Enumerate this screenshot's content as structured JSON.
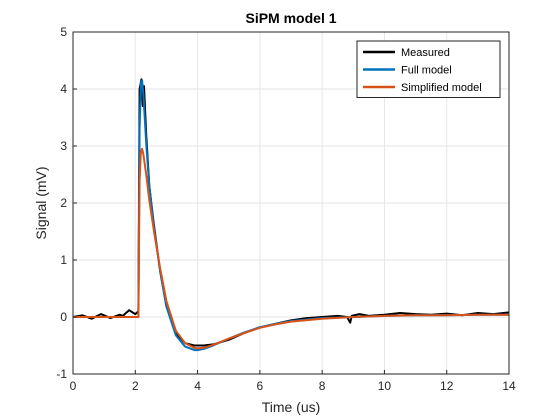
{
  "chart_data": {
    "type": "line",
    "title": "SiPM model 1",
    "xlabel": "Time (us)",
    "ylabel": "Signal (mV)",
    "xlim": [
      0,
      14
    ],
    "ylim": [
      -1,
      5
    ],
    "xticks": [
      0,
      2,
      4,
      6,
      8,
      10,
      12,
      14
    ],
    "yticks": [
      -1,
      0,
      1,
      2,
      3,
      4,
      5
    ],
    "grid": true,
    "legend_position": "top-right",
    "series": [
      {
        "name": "Measured",
        "color": "#000000",
        "x": [
          0,
          0.3,
          0.6,
          0.9,
          1.2,
          1.5,
          1.6,
          1.8,
          2.0,
          2.1,
          2.14,
          2.2,
          2.24,
          2.28,
          2.35,
          2.45,
          2.6,
          2.8,
          3.0,
          3.3,
          3.6,
          3.9,
          4.2,
          4.5,
          5.0,
          5.5,
          6.0,
          6.5,
          7.0,
          7.5,
          8.0,
          8.5,
          8.8,
          8.9,
          8.95,
          9.2,
          9.5,
          10.0,
          10.5,
          11.0,
          11.5,
          12.0,
          12.5,
          13.0,
          13.5,
          14.0
        ],
        "y": [
          0.0,
          0.03,
          -0.03,
          0.05,
          -0.02,
          0.04,
          0.02,
          0.12,
          0.05,
          0.1,
          4.0,
          4.17,
          3.7,
          4.05,
          3.2,
          2.3,
          1.6,
          0.8,
          0.2,
          -0.28,
          -0.46,
          -0.5,
          -0.5,
          -0.48,
          -0.4,
          -0.28,
          -0.18,
          -0.12,
          -0.06,
          -0.02,
          0.0,
          0.02,
          0.0,
          -0.1,
          0.02,
          0.05,
          0.02,
          0.04,
          0.07,
          0.05,
          0.04,
          0.06,
          0.03,
          0.07,
          0.05,
          0.08
        ]
      },
      {
        "name": "Full model",
        "color": "#0072BD",
        "x": [
          0,
          1.0,
          2.0,
          2.1,
          2.14,
          2.18,
          2.22,
          2.26,
          2.35,
          2.45,
          2.6,
          2.8,
          3.0,
          3.3,
          3.6,
          3.9,
          4.0,
          4.2,
          4.5,
          5.0,
          5.5,
          6.0,
          6.5,
          7.0,
          8.0,
          9.0,
          10.0,
          11.0,
          12.0,
          13.0,
          14.0
        ],
        "y": [
          0.0,
          0.0,
          0.0,
          0.0,
          3.3,
          4.1,
          4.15,
          3.9,
          3.05,
          2.3,
          1.55,
          0.8,
          0.18,
          -0.32,
          -0.52,
          -0.58,
          -0.58,
          -0.56,
          -0.5,
          -0.38,
          -0.27,
          -0.18,
          -0.12,
          -0.07,
          -0.02,
          0.0,
          0.02,
          0.03,
          0.03,
          0.04,
          0.04
        ]
      },
      {
        "name": "Simplified model",
        "color": "#D95319",
        "x": [
          0,
          1.0,
          2.0,
          2.1,
          2.14,
          2.18,
          2.22,
          2.26,
          2.35,
          2.45,
          2.6,
          2.8,
          3.0,
          3.3,
          3.6,
          3.9,
          4.0,
          4.2,
          4.5,
          5.0,
          5.5,
          6.0,
          6.5,
          7.0,
          8.0,
          9.0,
          10.0,
          11.0,
          12.0,
          13.0,
          14.0
        ],
        "y": [
          0.0,
          0.0,
          0.0,
          0.0,
          2.4,
          2.9,
          2.95,
          2.85,
          2.5,
          2.05,
          1.5,
          0.85,
          0.28,
          -0.24,
          -0.46,
          -0.54,
          -0.55,
          -0.54,
          -0.49,
          -0.38,
          -0.28,
          -0.19,
          -0.13,
          -0.08,
          -0.03,
          0.0,
          0.02,
          0.03,
          0.03,
          0.04,
          0.04
        ]
      }
    ]
  }
}
